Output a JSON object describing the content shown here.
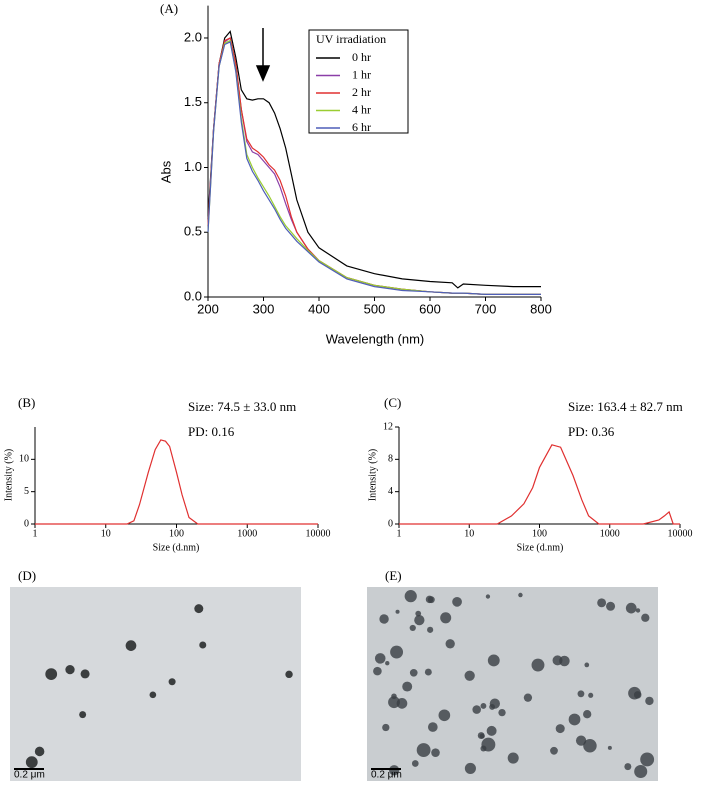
{
  "chart_data": [
    {
      "type": "line",
      "panel": "(A)",
      "x_label": "Wavelength (nm)",
      "y_label": "Abs",
      "legend_title": "UV irradiation",
      "x": [
        200,
        210,
        220,
        230,
        240,
        250,
        260,
        270,
        280,
        290,
        300,
        310,
        320,
        330,
        340,
        350,
        360,
        380,
        400,
        450,
        500,
        550,
        600,
        640,
        650,
        660,
        700,
        750,
        800
      ],
      "xlim": [
        200,
        800
      ],
      "xticks": [
        200,
        300,
        400,
        500,
        600,
        700,
        800
      ],
      "ylim": [
        0,
        2.25
      ],
      "yticks": [
        {
          "value": 0,
          "label": "0.0"
        },
        {
          "value": 0.5,
          "label": "0.5"
        },
        {
          "value": 1,
          "label": "1.0"
        },
        {
          "value": 1.5,
          "label": "1.5"
        },
        {
          "value": 2,
          "label": "2.0"
        }
      ],
      "series": [
        {
          "name": "0 hr",
          "color": "#000000",
          "values": [
            0.6,
            1.3,
            1.8,
            2.0,
            2.05,
            1.85,
            1.6,
            1.53,
            1.52,
            1.53,
            1.53,
            1.5,
            1.42,
            1.3,
            1.15,
            0.95,
            0.75,
            0.5,
            0.38,
            0.24,
            0.18,
            0.14,
            0.12,
            0.11,
            0.07,
            0.1,
            0.09,
            0.08,
            0.08
          ]
        },
        {
          "name": "1 hr",
          "color": "#8b3fa8",
          "values": [
            0.55,
            1.3,
            1.8,
            1.97,
            2.0,
            1.8,
            1.45,
            1.2,
            1.12,
            1.1,
            1.05,
            1.0,
            0.95,
            0.85,
            0.72,
            0.6,
            0.5,
            0.37,
            0.28,
            0.15,
            0.09,
            0.06,
            0.04,
            0.03,
            0.03,
            0.03,
            0.02,
            0.02,
            0.02
          ]
        },
        {
          "name": "2 hr",
          "color": "#e03030",
          "values": [
            0.55,
            1.3,
            1.8,
            1.98,
            2.0,
            1.8,
            1.45,
            1.22,
            1.15,
            1.12,
            1.08,
            1.02,
            0.98,
            0.9,
            0.78,
            0.62,
            0.5,
            0.37,
            0.28,
            0.15,
            0.09,
            0.06,
            0.04,
            0.03,
            0.03,
            0.03,
            0.02,
            0.02,
            0.02
          ]
        },
        {
          "name": "4 hr",
          "color": "#9acd32",
          "values": [
            0.5,
            1.28,
            1.78,
            1.96,
            1.98,
            1.75,
            1.38,
            1.1,
            1.0,
            0.92,
            0.85,
            0.78,
            0.7,
            0.62,
            0.55,
            0.5,
            0.45,
            0.36,
            0.28,
            0.15,
            0.09,
            0.06,
            0.04,
            0.03,
            0.03,
            0.03,
            0.02,
            0.02,
            0.02
          ]
        },
        {
          "name": "6 hr",
          "color": "#4f5fb8",
          "values": [
            0.5,
            1.28,
            1.78,
            1.95,
            1.97,
            1.74,
            1.35,
            1.07,
            0.97,
            0.9,
            0.82,
            0.75,
            0.68,
            0.6,
            0.53,
            0.48,
            0.43,
            0.35,
            0.27,
            0.14,
            0.08,
            0.05,
            0.04,
            0.03,
            0.03,
            0.03,
            0.02,
            0.02,
            0.02
          ]
        }
      ]
    },
    {
      "type": "line",
      "panel": "(B)",
      "x_label": "Size (d.nm)",
      "y_label": "Intensity (%)",
      "annotations": [
        "Size: 74.5 ± 33.0 nm",
        "PD: 0.16"
      ],
      "xscale": "log",
      "color": "#e03030",
      "x": [
        1,
        20,
        25,
        30,
        40,
        50,
        60,
        70,
        80,
        100,
        120,
        150,
        200,
        300,
        10000
      ],
      "values": [
        0,
        0,
        0.5,
        3,
        8,
        11.5,
        13,
        12.8,
        12,
        8,
        4.5,
        1,
        0,
        0,
        0
      ],
      "xlim": [
        1,
        10000
      ],
      "xticks": [
        1,
        10,
        100,
        1000,
        10000
      ],
      "ylim": [
        0,
        15
      ],
      "yticks": [
        0,
        5,
        10
      ]
    },
    {
      "type": "line",
      "panel": "(C)",
      "x_label": "Size (d.nm)",
      "y_label": "Intensity (%)",
      "annotations": [
        "Size: 163.4 ± 82.7 nm",
        "PD: 0.36"
      ],
      "xscale": "log",
      "color": "#e03030",
      "x": [
        1,
        25,
        40,
        60,
        80,
        100,
        150,
        200,
        300,
        400,
        500,
        700,
        1000,
        3000,
        5000,
        6000,
        7000,
        8000,
        10000
      ],
      "values": [
        0,
        0,
        1,
        2.5,
        4.5,
        7,
        9.8,
        9.5,
        6,
        3,
        1,
        0,
        0,
        0,
        0.5,
        1,
        1.5,
        0,
        0
      ],
      "xlim": [
        1,
        10000
      ],
      "xticks": [
        1,
        10,
        100,
        1000,
        10000
      ],
      "ylim": [
        0,
        12
      ],
      "yticks": [
        0,
        4,
        8,
        12
      ]
    }
  ],
  "images": [
    {
      "label": "(D)",
      "scale": "0.2 μm"
    },
    {
      "label": "(E)",
      "scale": "0.2 μm"
    }
  ]
}
